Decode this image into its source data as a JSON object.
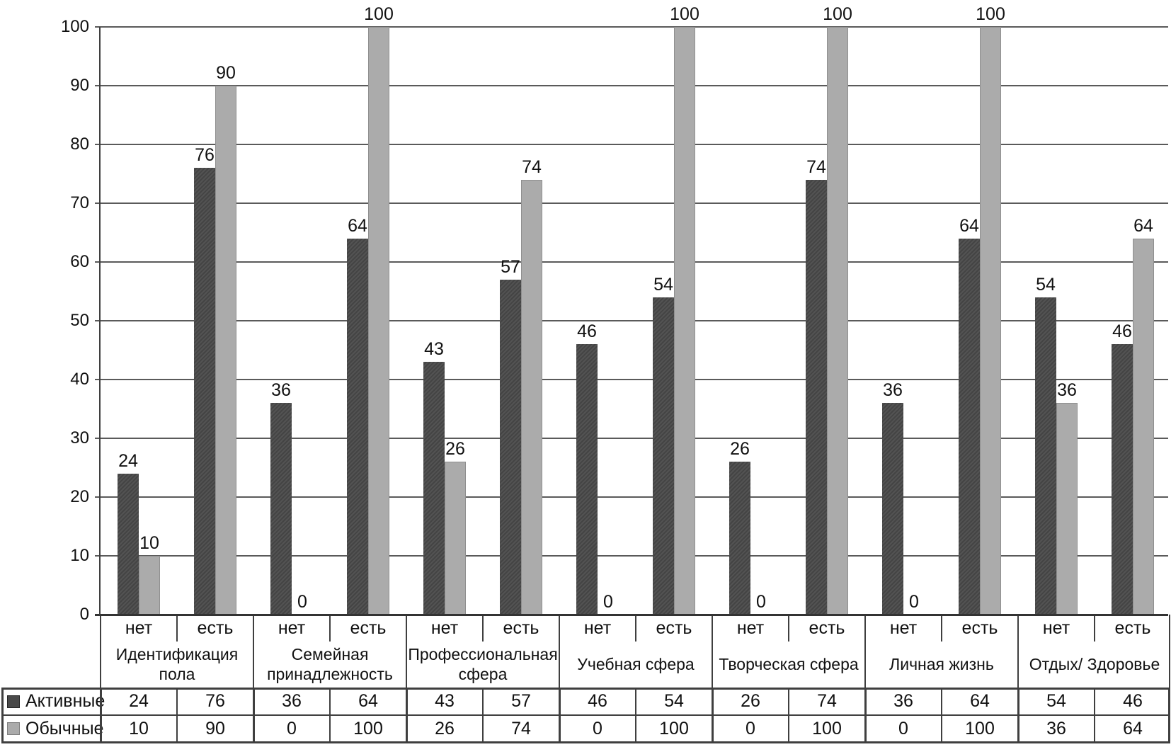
{
  "chart_data": {
    "type": "bar",
    "title": "",
    "xlabel": "",
    "ylabel": "",
    "ylim": [
      0,
      100
    ],
    "yticks": [
      0,
      10,
      20,
      30,
      40,
      50,
      60,
      70,
      80,
      90,
      100
    ],
    "grid": true,
    "show_data_labels": true,
    "data_table": true,
    "legend_position": "table-left",
    "sub_labels": [
      "нет",
      "есть"
    ],
    "categories": [
      "Идентификация пола",
      "Семейная принадлежность",
      "Профессиональная сфера",
      "Учебная сфера",
      "Творческая сфера",
      "Личная жизнь",
      "Отдых/ Здоровье"
    ],
    "series": [
      {
        "name": "Активные",
        "color": "#4a4a4a",
        "swatch_border": "#262626",
        "values": [
          24,
          76,
          36,
          64,
          43,
          57,
          46,
          54,
          26,
          74,
          36,
          64,
          54,
          46
        ]
      },
      {
        "name": "Обычные",
        "color": "#ababab",
        "swatch_border": "#808080",
        "values": [
          10,
          90,
          0,
          100,
          26,
          74,
          0,
          100,
          0,
          100,
          0,
          100,
          36,
          64
        ]
      }
    ]
  },
  "colors": {
    "grid": "#5a5a5a",
    "axis": "#333333",
    "table_border": "#3f3f3f",
    "text": "#111111",
    "background": "#ffffff"
  }
}
